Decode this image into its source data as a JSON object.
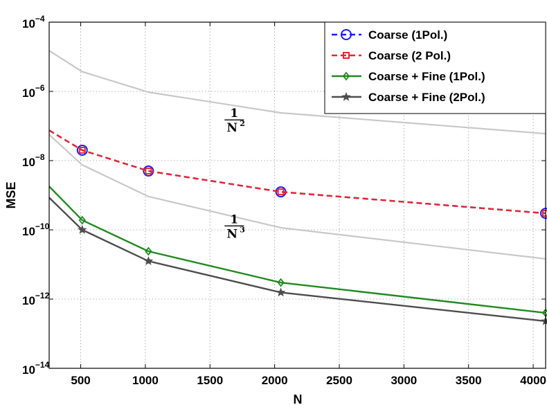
{
  "chart_data": {
    "type": "line",
    "xlabel": "N",
    "ylabel": "MSE",
    "xscale": "linear",
    "yscale": "log",
    "xlim": [
      256,
      4096
    ],
    "ylim": [
      1e-14,
      0.0001
    ],
    "grid": true,
    "legend_position": "top-right",
    "xticks": [
      500,
      1000,
      1500,
      2000,
      2500,
      3000,
      3500,
      4000
    ],
    "xtick_labels": [
      "500",
      "1000",
      "1500",
      "2000",
      "2500",
      "3000",
      "3500",
      "4000"
    ],
    "yticks": [
      1e-14,
      1e-12,
      1e-10,
      1e-08,
      1e-06,
      0.0001
    ],
    "ytick_labels": [
      {
        "base": "10",
        "exp": "−14"
      },
      {
        "base": "10",
        "exp": "−12"
      },
      {
        "base": "10",
        "exp": "−10"
      },
      {
        "base": "10",
        "exp": "−8"
      },
      {
        "base": "10",
        "exp": "−6"
      },
      {
        "base": "10",
        "exp": "−4"
      }
    ],
    "series": [
      {
        "name": "Coarse (1Pol.)",
        "color": "#1a1aff",
        "dash": "dashed",
        "marker": "circle",
        "x": [
          256,
          512,
          1024,
          2048,
          4096
        ],
        "y": [
          7.5e-08,
          2e-08,
          5e-09,
          1.25e-09,
          3e-10
        ]
      },
      {
        "name": "Coarse (2 Pol.)",
        "color": "#e8262b",
        "dash": "dashed",
        "marker": "square",
        "x": [
          256,
          512,
          1024,
          2048,
          4096
        ],
        "y": [
          7.5e-08,
          2e-08,
          5e-09,
          1.25e-09,
          3e-10
        ]
      },
      {
        "name": "Coarse + Fine (1Pol.)",
        "color": "#1f8a1f",
        "dash": "solid",
        "marker": "diamond",
        "x": [
          256,
          512,
          1024,
          2048,
          4096
        ],
        "y": [
          1.8e-09,
          1.9e-10,
          2.4e-11,
          3e-12,
          4e-13
        ]
      },
      {
        "name": "Coarse + Fine (2Pol.)",
        "color": "#4d4d4d",
        "dash": "solid",
        "marker": "star",
        "x": [
          256,
          512,
          1024,
          2048,
          4096
        ],
        "y": [
          8.5e-10,
          1e-10,
          1.25e-11,
          1.55e-12,
          2.3e-13
        ]
      }
    ],
    "reference_lines": [
      {
        "label": "1/N²",
        "color": "#c8c8c8",
        "x": [
          256,
          512,
          1024,
          2048,
          4096
        ],
        "y": [
          1.5e-05,
          3.7e-06,
          9.5e-07,
          2.4e-07,
          6e-08
        ]
      },
      {
        "label": "1/N³",
        "color": "#c8c8c8",
        "x": [
          256,
          512,
          1024,
          2048,
          4096
        ],
        "y": [
          5.6e-08,
          7.5e-09,
          9.2e-10,
          1.15e-10,
          1.45e-11
        ]
      }
    ],
    "annotations": [
      {
        "numerator": "1",
        "denominator": "N",
        "exponent": "2",
        "x": 1800,
        "y": 1.5e-07
      },
      {
        "numerator": "1",
        "denominator": "N",
        "exponent": "3",
        "x": 1800,
        "y": 1.3e-10
      }
    ]
  }
}
